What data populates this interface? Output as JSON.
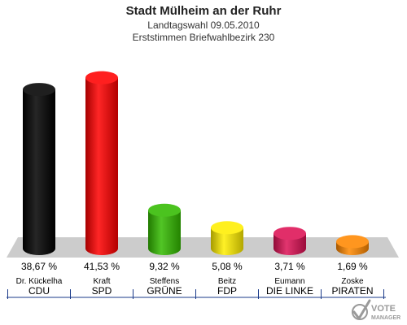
{
  "header": {
    "title": "Stadt Mülheim an der Ruhr",
    "subtitle1": "Landtagswahl 09.05.2010",
    "subtitle2": "Erststimmen Briefwahlbezirk 230"
  },
  "chart_data": {
    "type": "bar",
    "title": "Stadt Mülheim an der Ruhr",
    "categories": [
      "CDU",
      "SPD",
      "GRÜNE",
      "FDP",
      "DIE LINKE",
      "PIRATEN"
    ],
    "candidates": [
      "Dr. Kückelha",
      "Kraft",
      "Steffens",
      "Beitz",
      "Eumann",
      "Zoske"
    ],
    "values": [
      38.67,
      41.53,
      9.32,
      5.08,
      3.71,
      1.69
    ],
    "value_labels": [
      "38,67 %",
      "41,53 %",
      "9,32 %",
      "5,08 %",
      "3,71 %",
      "1,69 %"
    ],
    "colors": [
      "#000000",
      "#ff0000",
      "#33bb00",
      "#ffee00",
      "#dd1155",
      "#ff8800"
    ],
    "ylim": [
      0,
      45
    ],
    "grid": false
  },
  "logo": {
    "line1": "VOTE",
    "line2": "MANAGER"
  }
}
